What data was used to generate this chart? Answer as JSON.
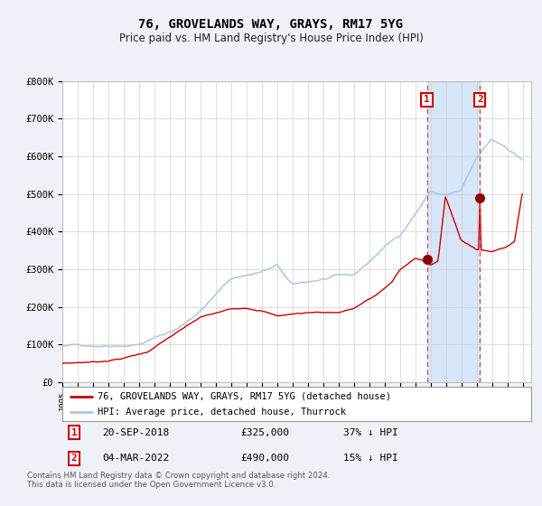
{
  "title": "76, GROVELANDS WAY, GRAYS, RM17 5YG",
  "subtitle": "Price paid vs. HM Land Registry's House Price Index (HPI)",
  "hpi_color": "#a8c8e8",
  "price_color": "#CC0000",
  "sale1_x": 2018.72,
  "sale1_price": 325000,
  "sale1_label": "20-SEP-2018",
  "sale1_hpi_pct": "37%",
  "sale2_x": 2022.17,
  "sale2_price": 490000,
  "sale2_label": "04-MAR-2022",
  "sale2_hpi_pct": "15%",
  "background_color": "#eef2f8",
  "plot_bg": "#ffffff",
  "legend1": "76, GROVELANDS WAY, GRAYS, RM17 5YG (detached house)",
  "legend2": "HPI: Average price, detached house, Thurrock",
  "footnote": "Contains HM Land Registry data © Crown copyright and database right 2024.\nThis data is licensed under the Open Government Licence v3.0.",
  "title_fontsize": 10,
  "subtitle_fontsize": 8.5
}
